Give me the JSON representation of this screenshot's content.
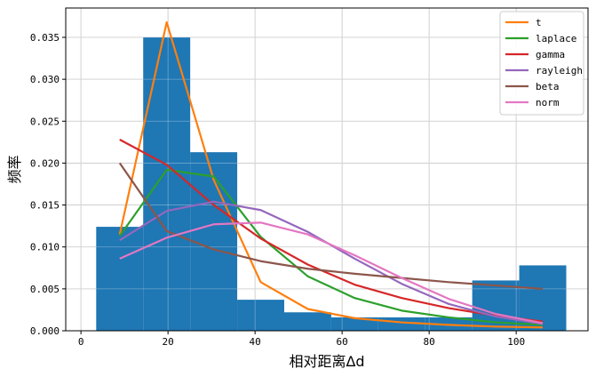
{
  "chart_data": {
    "type": "bar",
    "xlabel": "相对距离Δd",
    "ylabel": "频率",
    "xlim": [
      -3.5,
      116.5
    ],
    "ylim": [
      0,
      0.0385
    ],
    "xticks": [
      0,
      20,
      40,
      60,
      80,
      100
    ],
    "xtick_labels": [
      "0",
      "20",
      "40",
      "60",
      "80",
      "100"
    ],
    "yticks": [
      0.0,
      0.005,
      0.01,
      0.015,
      0.02,
      0.025,
      0.03,
      0.035
    ],
    "ytick_labels": [
      "0.000",
      "0.005",
      "0.010",
      "0.015",
      "0.020",
      "0.025",
      "0.030",
      "0.035"
    ],
    "grid": true,
    "legend_position": "top-right",
    "histogram": {
      "color": "#1f77b4",
      "bin_edges": [
        3.5,
        14.3,
        25.1,
        35.9,
        46.7,
        57.5,
        68.3,
        79.1,
        89.9,
        100.7,
        111.5
      ],
      "values": [
        0.0124,
        0.035,
        0.0213,
        0.0037,
        0.0022,
        0.0016,
        0.0016,
        0.0016,
        0.006,
        0.0078
      ]
    },
    "x": [
      8.9,
      19.7,
      30.5,
      41.3,
      52.1,
      62.9,
      73.7,
      84.5,
      95.3,
      106.1
    ],
    "series": [
      {
        "name": "t",
        "color": "#ff7f0e",
        "values": [
          0.0115,
          0.0368,
          0.018,
          0.0058,
          0.0026,
          0.0015,
          0.001,
          0.0007,
          0.0005,
          0.0004
        ]
      },
      {
        "name": "laplace",
        "color": "#2ca02c",
        "values": [
          0.0113,
          0.0192,
          0.0184,
          0.0112,
          0.0065,
          0.0039,
          0.0024,
          0.0016,
          0.001,
          0.0007
        ]
      },
      {
        "name": "gamma",
        "color": "#d62728",
        "values": [
          0.0228,
          0.0198,
          0.015,
          0.011,
          0.0079,
          0.0055,
          0.0039,
          0.0027,
          0.0018,
          0.0011
        ]
      },
      {
        "name": "rayleigh",
        "color": "#9467bd",
        "values": [
          0.0108,
          0.0143,
          0.0154,
          0.0144,
          0.0118,
          0.0086,
          0.0056,
          0.0032,
          0.0017,
          0.0008
        ]
      },
      {
        "name": "beta",
        "color": "#8c564b",
        "values": [
          0.02,
          0.0119,
          0.0097,
          0.0083,
          0.0074,
          0.0068,
          0.0063,
          0.0058,
          0.0054,
          0.005
        ]
      },
      {
        "name": "norm",
        "color": "#e377c2",
        "values": [
          0.0086,
          0.0111,
          0.0127,
          0.0129,
          0.0115,
          0.009,
          0.0063,
          0.0038,
          0.002,
          0.0009
        ]
      }
    ]
  }
}
